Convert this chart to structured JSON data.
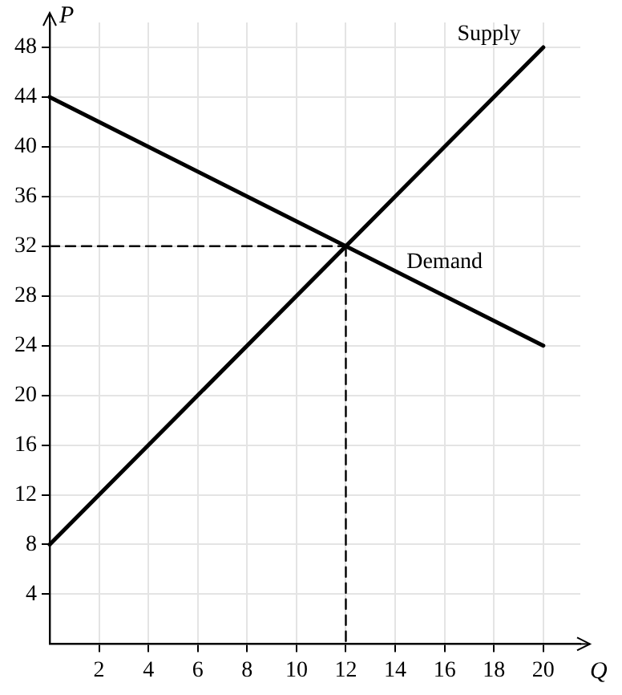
{
  "chart_data": {
    "type": "line",
    "xlabel": "Q",
    "ylabel": "P",
    "xlim": [
      0,
      21.5
    ],
    "ylim": [
      0,
      50
    ],
    "xticks": [
      2,
      4,
      6,
      8,
      10,
      12,
      14,
      16,
      18,
      20
    ],
    "yticks": [
      4,
      8,
      12,
      16,
      20,
      24,
      28,
      32,
      36,
      40,
      44,
      48
    ],
    "grid": true,
    "legend": false,
    "marker": "none",
    "series": [
      {
        "name": "Supply",
        "color": "#000000",
        "x": [
          0,
          20
        ],
        "values": [
          8,
          48
        ]
      },
      {
        "name": "Demand",
        "color": "#000000",
        "x": [
          0,
          20
        ],
        "values": [
          44,
          24
        ]
      },
      {
        "color": "#000000",
        "x": [
          0,
          12
        ],
        "values": [
          32,
          32
        ],
        "line_style": "dashed"
      },
      {
        "color": "#000000",
        "x": [
          12,
          12
        ],
        "values": [
          32,
          0
        ],
        "line_style": "dashed"
      }
    ]
  }
}
